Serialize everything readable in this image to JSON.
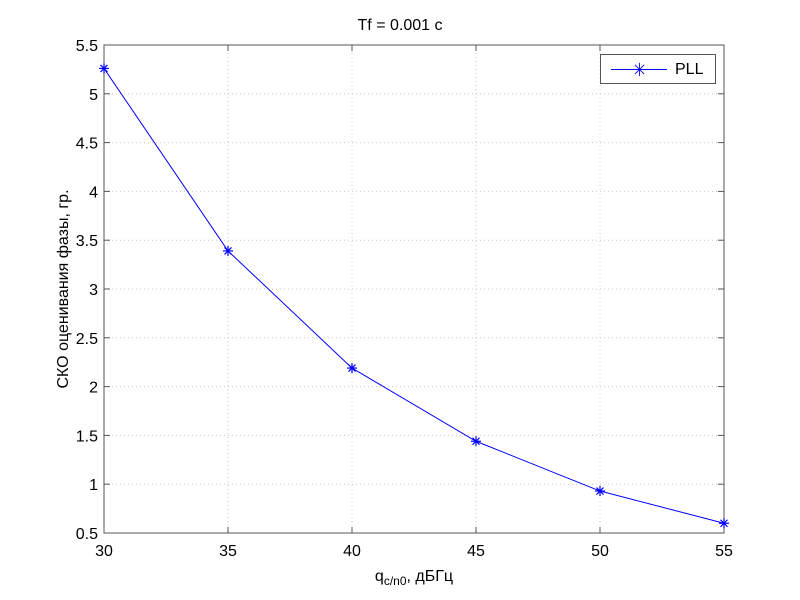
{
  "chart_data": {
    "type": "line",
    "title": "Tf = 0.001 c",
    "xlabel": "q_{c/n0}, дБГц",
    "xlabel_main": "q",
    "xlabel_sub": "c/n0",
    "xlabel_rest": ", дБГц",
    "ylabel": "СКО оценивания фазы, гр.",
    "x": [
      30,
      35,
      40,
      45,
      50,
      55
    ],
    "series": [
      {
        "name": "PLL",
        "values": [
          5.26,
          3.39,
          2.19,
          1.44,
          0.93,
          0.6
        ],
        "color": "#0000ff",
        "marker": "*"
      }
    ],
    "xlim": [
      30,
      55
    ],
    "ylim": [
      0.5,
      5.5
    ],
    "xticks": [
      "30",
      "35",
      "40",
      "45",
      "50",
      "55"
    ],
    "yticks": [
      "0.5",
      "1",
      "1.5",
      "2",
      "2.5",
      "3",
      "3.5",
      "4",
      "4.5",
      "5",
      "5.5"
    ],
    "grid": true,
    "legend_position": "upper right"
  },
  "legend": {
    "label": "PLL",
    "marker": "✳"
  }
}
